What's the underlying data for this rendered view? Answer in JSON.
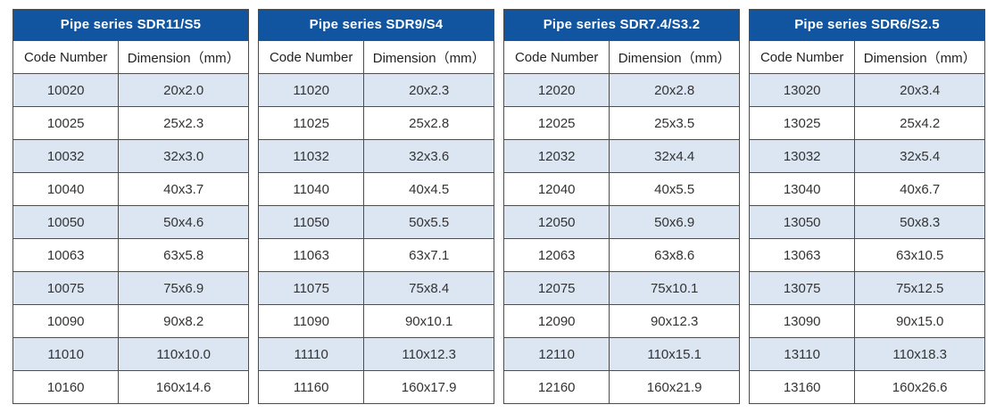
{
  "columns": {
    "code": "Code Number",
    "dimension": "Dimension（mm）"
  },
  "colors": {
    "header_blue": "#1155a0",
    "stripe_blue": "#dbe6f2",
    "border": "#4d4d4d",
    "title_text": "#ffffff",
    "body_text": "#333333"
  },
  "tables": [
    {
      "title": "Pipe series SDR11/S5",
      "rows": [
        {
          "code": "10020",
          "dimension": "20x2.0"
        },
        {
          "code": "10025",
          "dimension": "25x2.3"
        },
        {
          "code": "10032",
          "dimension": "32x3.0"
        },
        {
          "code": "10040",
          "dimension": "40x3.7"
        },
        {
          "code": "10050",
          "dimension": "50x4.6"
        },
        {
          "code": "10063",
          "dimension": "63x5.8"
        },
        {
          "code": "10075",
          "dimension": "75x6.9"
        },
        {
          "code": "10090",
          "dimension": "90x8.2"
        },
        {
          "code": "11010",
          "dimension": "110x10.0"
        },
        {
          "code": "10160",
          "dimension": "160x14.6"
        }
      ]
    },
    {
      "title": "Pipe series SDR9/S4",
      "rows": [
        {
          "code": "11020",
          "dimension": "20x2.3"
        },
        {
          "code": "11025",
          "dimension": "25x2.8"
        },
        {
          "code": "11032",
          "dimension": "32x3.6"
        },
        {
          "code": "11040",
          "dimension": "40x4.5"
        },
        {
          "code": "11050",
          "dimension": "50x5.5"
        },
        {
          "code": "11063",
          "dimension": "63x7.1"
        },
        {
          "code": "11075",
          "dimension": "75x8.4"
        },
        {
          "code": "11090",
          "dimension": "90x10.1"
        },
        {
          "code": "11110",
          "dimension": "110x12.3"
        },
        {
          "code": "11160",
          "dimension": "160x17.9"
        }
      ]
    },
    {
      "title": "Pipe series SDR7.4/S3.2",
      "rows": [
        {
          "code": "12020",
          "dimension": "20x2.8"
        },
        {
          "code": "12025",
          "dimension": "25x3.5"
        },
        {
          "code": "12032",
          "dimension": "32x4.4"
        },
        {
          "code": "12040",
          "dimension": "40x5.5"
        },
        {
          "code": "12050",
          "dimension": "50x6.9"
        },
        {
          "code": "12063",
          "dimension": "63x8.6"
        },
        {
          "code": "12075",
          "dimension": "75x10.1"
        },
        {
          "code": "12090",
          "dimension": "90x12.3"
        },
        {
          "code": "12110",
          "dimension": "110x15.1"
        },
        {
          "code": "12160",
          "dimension": "160x21.9"
        }
      ]
    },
    {
      "title": "Pipe series SDR6/S2.5",
      "rows": [
        {
          "code": "13020",
          "dimension": "20x3.4"
        },
        {
          "code": "13025",
          "dimension": "25x4.2"
        },
        {
          "code": "13032",
          "dimension": "32x5.4"
        },
        {
          "code": "13040",
          "dimension": "40x6.7"
        },
        {
          "code": "13050",
          "dimension": "50x8.3"
        },
        {
          "code": "13063",
          "dimension": "63x10.5"
        },
        {
          "code": "13075",
          "dimension": "75x12.5"
        },
        {
          "code": "13090",
          "dimension": "90x15.0"
        },
        {
          "code": "13110",
          "dimension": "110x18.3"
        },
        {
          "code": "13160",
          "dimension": "160x26.6"
        }
      ]
    }
  ]
}
